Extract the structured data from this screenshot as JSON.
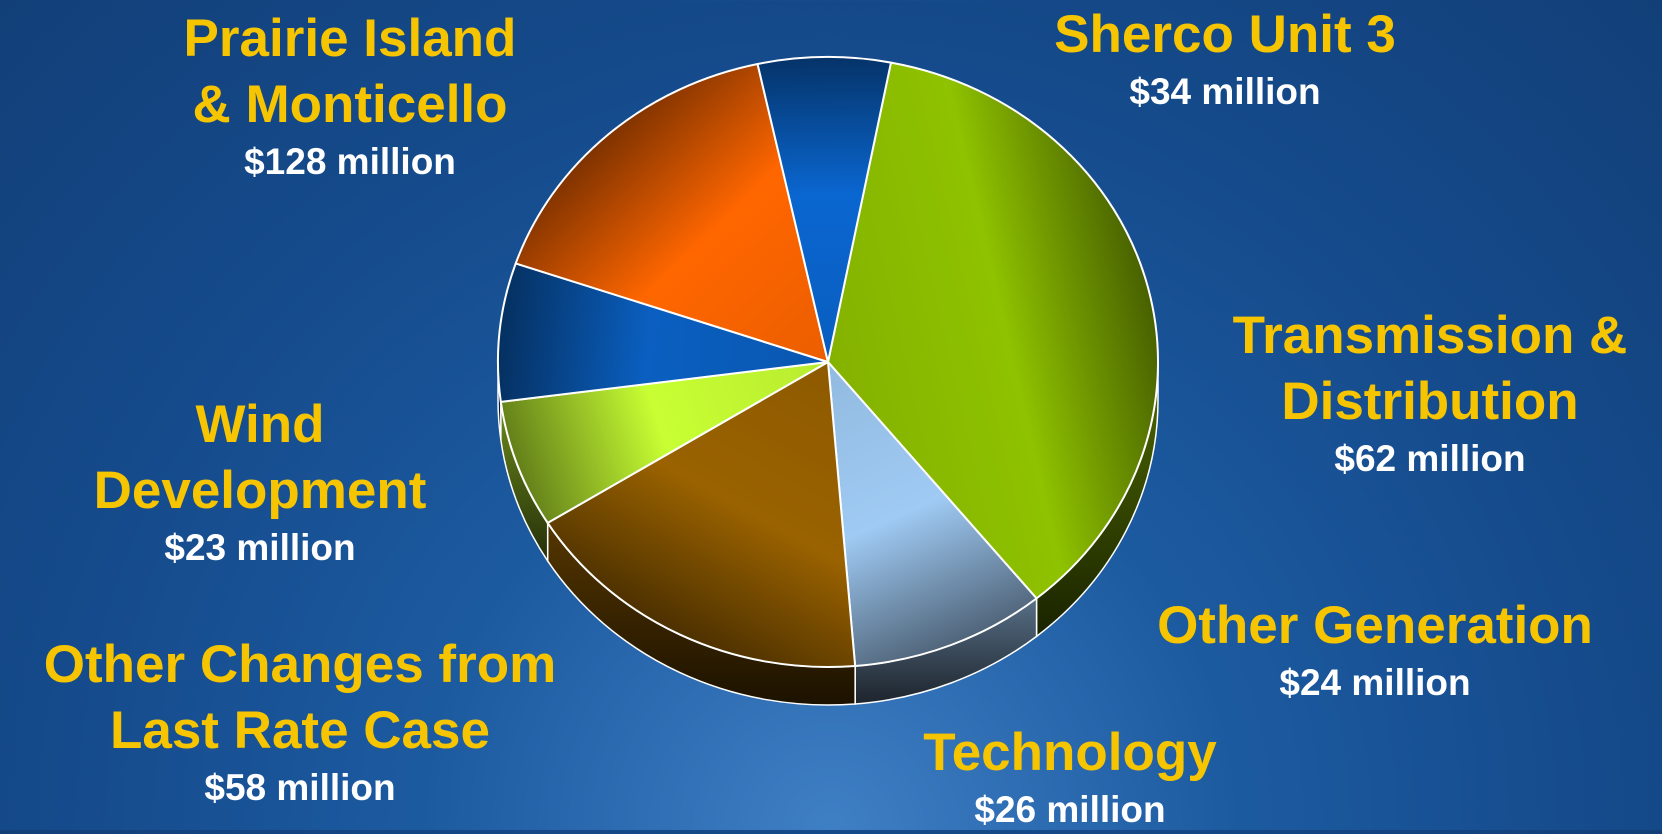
{
  "chart_data": {
    "type": "pie",
    "unit": "million",
    "slices": [
      {
        "name": "Prairie Island & Monticello",
        "name_lines": [
          "Prairie Island",
          "& Monticello"
        ],
        "value": 128,
        "value_label": "$128 million",
        "color": "#8fc200"
      },
      {
        "name": "Sherco Unit 3",
        "name_lines": [
          "Sherco Unit 3"
        ],
        "value": 34,
        "value_label": "$34 million",
        "color": "#9fcaf3"
      },
      {
        "name": "Transmission & Distribution",
        "name_lines": [
          "Transmission &",
          "Distribution"
        ],
        "value": 62,
        "value_label": "$62 million",
        "color": "#9a6200"
      },
      {
        "name": "Other Generation",
        "name_lines": [
          "Other Generation"
        ],
        "value": 24,
        "value_label": "$24 million",
        "color": "#c8ff33"
      },
      {
        "name": "Technology",
        "name_lines": [
          "Technology"
        ],
        "value": 26,
        "value_label": "$26 million",
        "color": "#0a5fc0"
      },
      {
        "name": "Other Changes from Last Rate Case",
        "name_lines": [
          "Other Changes from",
          "Last Rate Case"
        ],
        "value": 58,
        "value_label": "$58 million",
        "color": "#ff6600"
      },
      {
        "name": "Wind Development",
        "name_lines": [
          "Wind",
          "Development"
        ],
        "value": 23,
        "value_label": "$23 million",
        "color": "#0a66d0"
      }
    ]
  }
}
